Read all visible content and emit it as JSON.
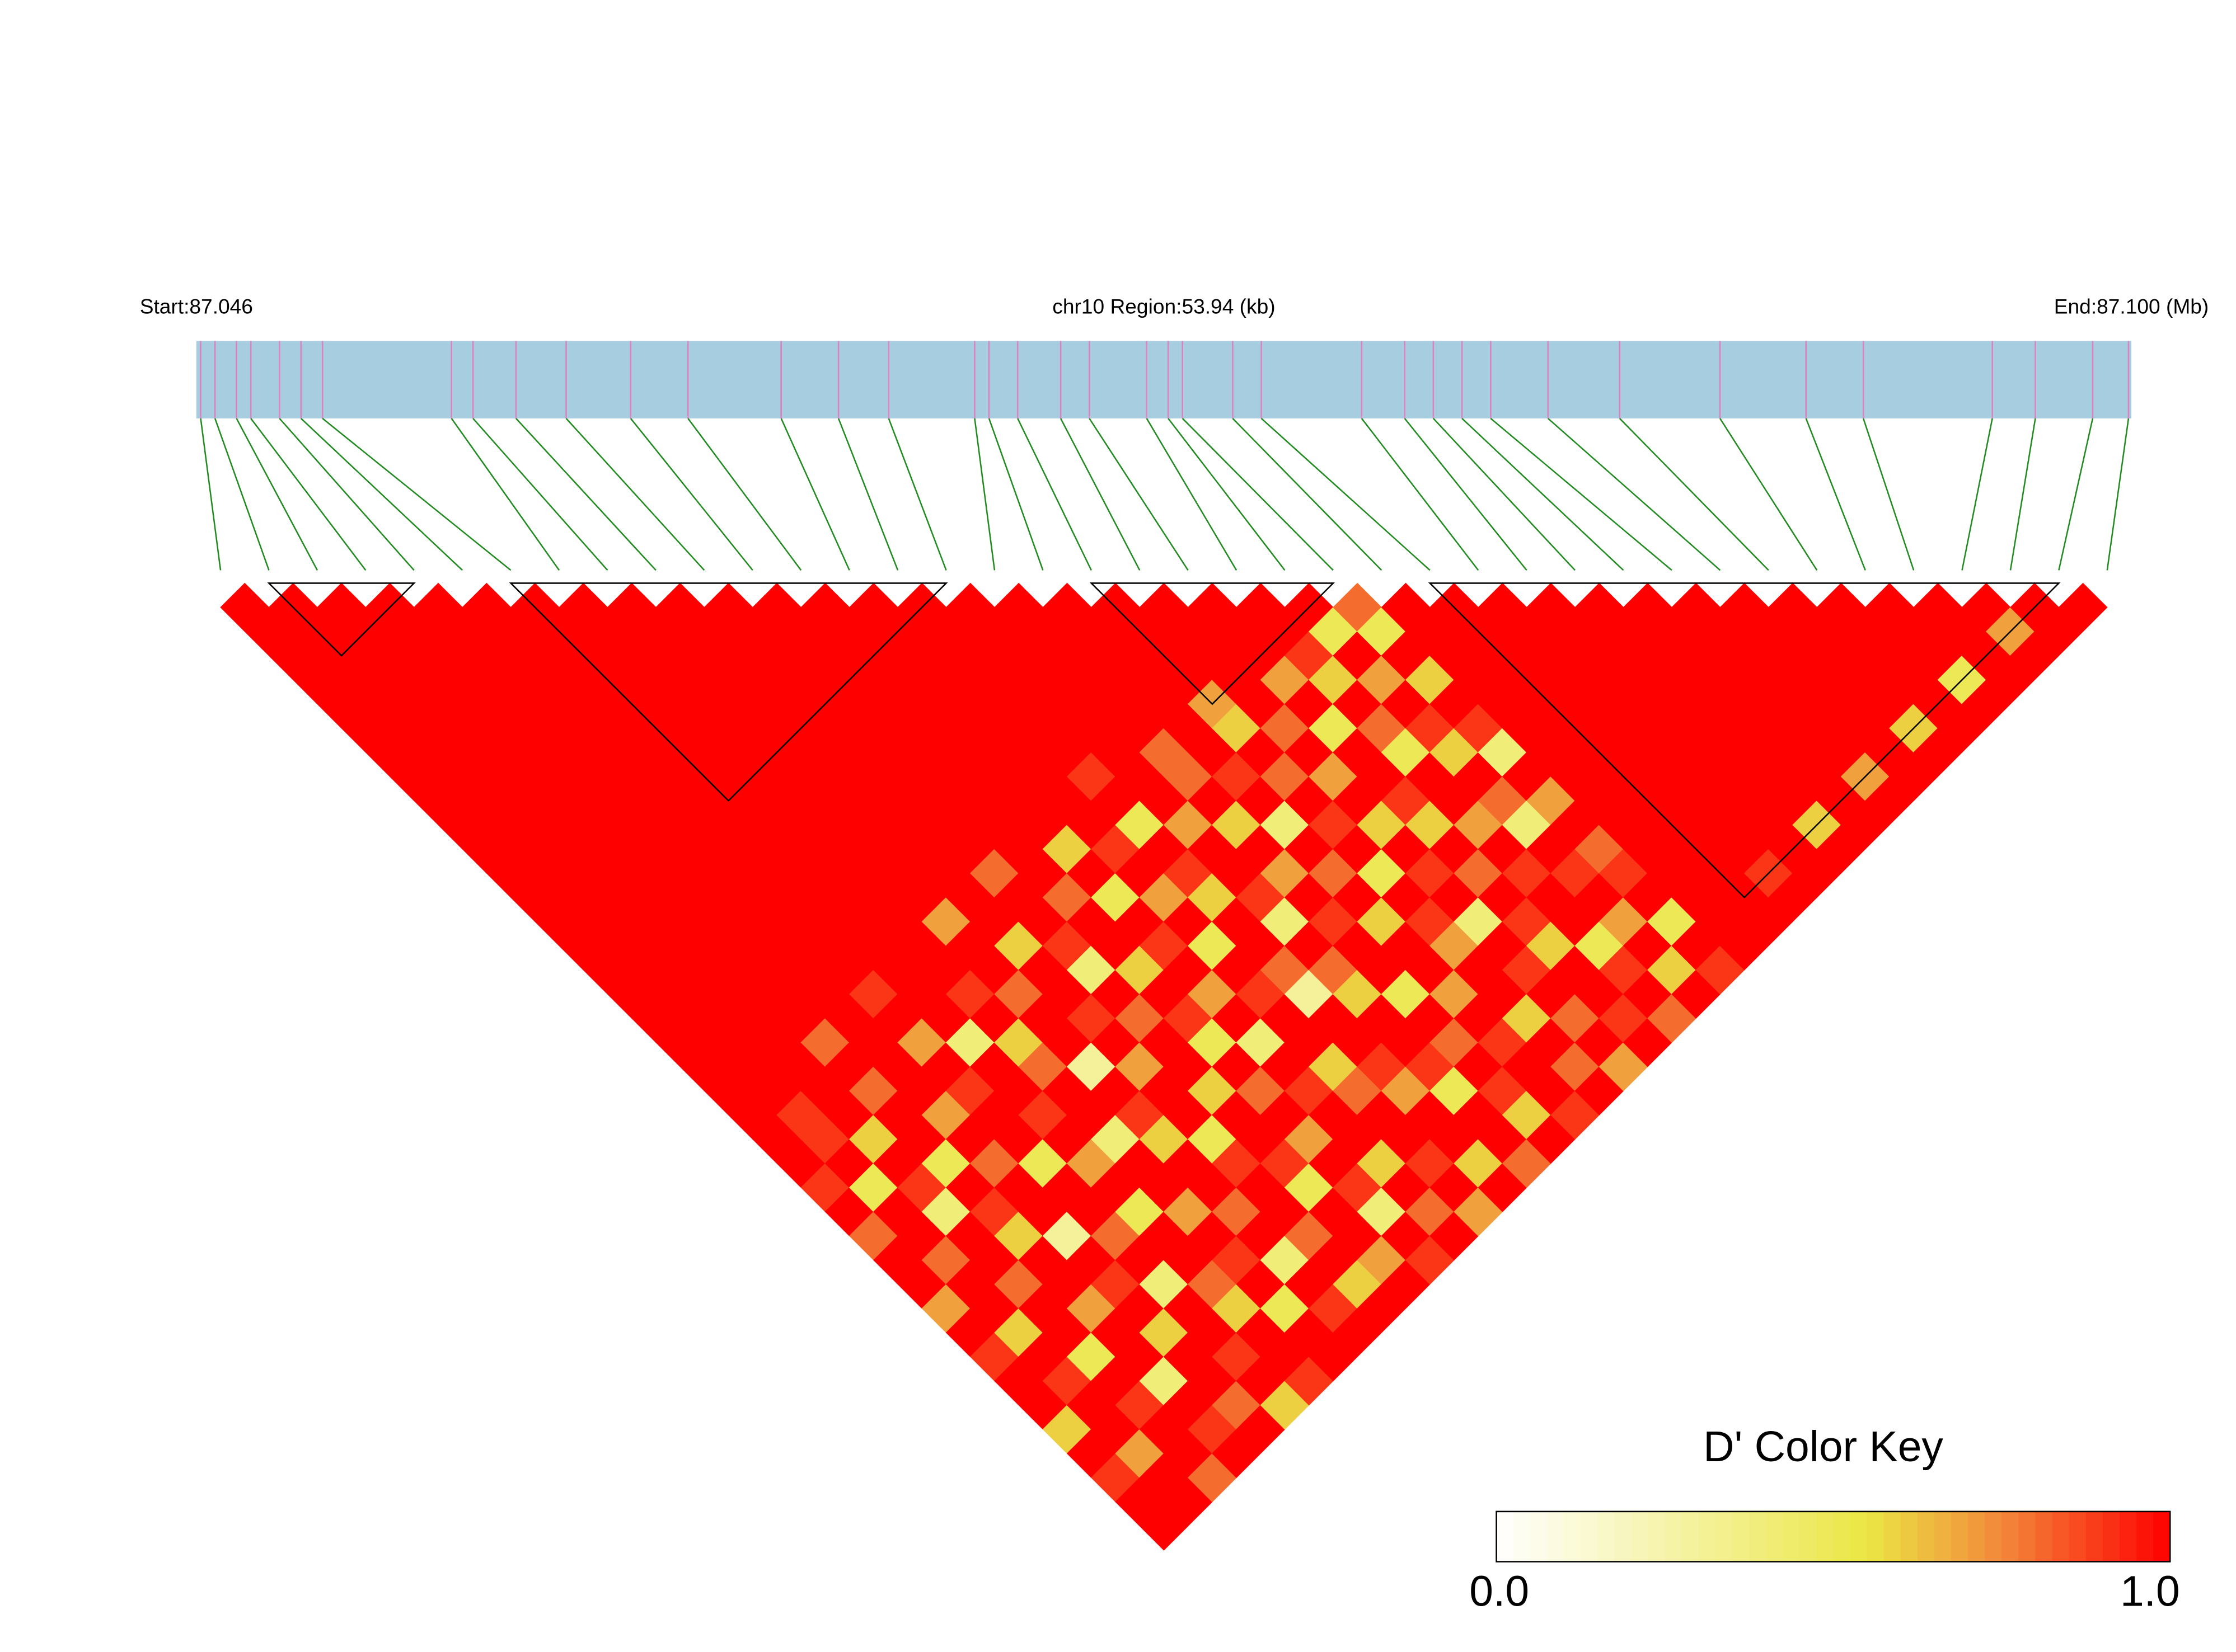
{
  "chart_data": {
    "type": "ld-heatmap",
    "title": "chr10 Region:53.94 (kb)",
    "xlim": [
      87.046,
      87.1
    ],
    "xticks": [
      {
        "value": 87.046,
        "label": "Start:87.046"
      },
      {
        "value": 87.1,
        "label": "End:87.100 (Mb)"
      }
    ],
    "positions": [
      87.04612,
      87.04652,
      87.04712,
      87.04752,
      87.04832,
      87.04892,
      87.04952,
      87.05312,
      87.05372,
      87.05492,
      87.05632,
      87.05812,
      87.05972,
      87.06232,
      87.06392,
      87.06532,
      87.06772,
      87.06812,
      87.06892,
      87.07012,
      87.07092,
      87.07252,
      87.07312,
      87.07352,
      87.07492,
      87.07572,
      87.07852,
      87.07972,
      87.08052,
      87.08132,
      87.08212,
      87.08372,
      87.08572,
      87.08852,
      87.09092,
      87.09252,
      87.09612,
      87.09732,
      87.09892,
      87.09992
    ],
    "ld": [
      [
        1,
        1,
        1,
        1,
        1,
        1,
        1,
        1,
        1,
        1,
        1,
        1,
        1,
        1,
        1,
        1,
        1,
        1,
        1,
        1,
        1,
        1,
        1,
        1,
        0.9,
        1,
        0.8,
        1,
        1,
        0.7,
        1,
        0.9,
        1,
        1,
        0.6,
        1,
        0.9,
        1,
        1
      ],
      [
        1,
        1,
        1,
        1,
        1,
        1,
        1,
        1,
        1,
        1,
        1,
        1,
        1,
        1,
        1,
        1,
        1,
        1,
        1,
        1,
        1,
        0.9,
        0.9,
        1,
        0.5,
        1,
        1,
        0.8,
        1,
        1,
        0.6,
        1,
        0.9,
        1,
        1,
        0.7,
        1,
        1
      ],
      [
        1,
        1,
        1,
        1,
        1,
        1,
        1,
        1,
        1,
        1,
        1,
        1,
        1,
        1,
        1,
        1,
        1,
        1,
        1,
        1,
        1,
        1,
        0.6,
        1,
        0.9,
        0.4,
        1,
        1,
        0.8,
        1,
        1,
        0.5,
        1,
        0.9,
        1,
        1,
        0.8
      ],
      [
        1,
        1,
        1,
        1,
        1,
        1,
        1,
        1,
        1,
        1,
        1,
        1,
        1,
        1,
        1,
        1,
        1,
        1,
        0.8,
        1,
        0.8,
        1,
        1,
        0.5,
        1,
        0.9,
        0.6,
        1,
        1,
        0.7,
        1,
        1,
        0.4,
        1,
        0.9,
        1
      ],
      [
        1,
        1,
        1,
        1,
        1,
        1,
        1,
        1,
        1,
        1,
        1,
        1,
        1,
        1,
        1,
        1,
        1,
        1,
        1,
        1,
        1,
        0.7,
        1,
        0.8,
        1,
        1,
        0.3,
        1,
        0.9,
        1,
        0.6,
        1,
        1,
        0.8,
        1
      ],
      [
        1,
        1,
        1,
        1,
        1,
        1,
        1,
        1,
        1,
        1,
        1,
        1,
        1,
        1,
        1,
        1,
        0.9,
        1,
        0.7,
        1,
        0.9,
        1,
        1,
        0.5,
        1,
        1,
        0.8,
        1,
        0.4,
        1,
        1,
        0.9,
        1,
        0.6
      ],
      [
        1,
        1,
        1,
        1,
        1,
        1,
        1,
        1,
        1,
        1,
        1,
        1,
        1,
        1,
        1,
        1,
        1,
        1,
        0.4,
        1,
        1,
        0.9,
        1,
        0.7,
        1,
        0.5,
        1,
        1,
        0.8,
        0.6,
        1,
        1,
        0.9
      ],
      [
        1,
        1,
        1,
        1,
        1,
        1,
        1,
        1,
        1,
        1,
        1,
        1,
        1,
        1,
        1,
        1,
        0.9,
        1,
        0.6,
        0.8,
        1,
        1,
        0.4,
        1,
        1,
        0.7,
        1,
        0.9,
        1,
        0.5,
        1,
        1
      ],
      [
        1,
        1,
        1,
        1,
        1,
        1,
        1,
        1,
        1,
        1,
        1,
        1,
        1,
        0.7,
        1,
        1,
        0.8,
        1,
        1,
        0.3,
        1,
        0.9,
        0.6,
        1,
        1,
        0.8,
        1,
        0.4,
        1,
        0.9,
        1
      ],
      [
        1,
        1,
        1,
        1,
        1,
        1,
        1,
        1,
        1,
        1,
        1,
        1,
        1,
        1,
        0.6,
        1,
        1,
        0.9,
        1,
        0.7,
        1,
        1,
        0.5,
        0.9,
        1,
        1,
        0.8,
        1,
        0.6,
        1
      ],
      [
        1,
        1,
        1,
        1,
        1,
        1,
        1,
        1,
        1,
        1,
        1,
        0.8,
        1,
        1,
        0.9,
        0.4,
        1,
        0.8,
        1,
        1,
        0.6,
        1,
        1,
        0.9,
        0.5,
        1,
        1,
        0.7,
        1
      ],
      [
        1,
        1,
        1,
        1,
        1,
        1,
        1,
        1,
        1,
        1,
        1,
        1,
        0.8,
        1,
        1,
        0.6,
        1,
        0.9,
        0.5,
        1,
        0.8,
        1,
        0.7,
        1,
        0.9,
        0.4,
        1,
        0.9
      ],
      [
        1,
        1,
        1,
        1,
        1,
        1,
        1,
        1,
        1,
        1,
        0.6,
        1,
        0.5,
        1,
        0.9,
        1,
        0.7,
        1,
        0.4,
        1,
        0.9,
        1,
        1,
        0.6,
        1,
        0.8,
        1
      ],
      [
        1,
        1,
        1,
        1,
        1,
        1,
        1,
        1,
        1,
        1,
        0.9,
        1,
        0.7,
        1,
        0.5,
        1,
        0.9,
        1,
        1,
        0.6,
        0.8,
        1,
        1,
        0.9,
        1,
        0.7
      ],
      [
        1,
        1,
        1,
        1,
        1,
        1,
        1,
        0.9,
        1,
        0.5,
        1,
        0.9,
        0.6,
        1,
        1,
        0.8,
        0.3,
        1,
        1,
        0.9,
        0.7,
        1,
        1,
        0.6,
        1
      ],
      [
        1,
        1,
        1,
        1,
        1,
        1,
        1,
        1,
        1,
        0.7,
        1,
        1,
        0.9,
        0.4,
        1,
        0.8,
        0.6,
        1,
        1,
        0.9,
        0.5,
        1,
        1,
        0.8
      ],
      [
        1,
        1,
        1,
        1,
        1,
        1,
        0.8,
        0.8,
        1,
        0.6,
        1,
        0.7,
        1,
        0.9,
        1,
        1,
        0.5,
        1,
        0.8,
        1,
        0.9,
        0.6,
        1
      ],
      [
        1,
        1,
        1,
        1,
        1,
        1,
        1,
        0.9,
        1,
        0.4,
        1,
        0.8,
        1,
        0.6,
        1,
        1,
        0.7,
        1,
        0.9,
        1,
        1,
        0.9
      ],
      [
        1,
        1,
        1,
        1,
        0.7,
        0.6,
        1,
        0.8,
        1,
        0.9,
        1,
        0.5,
        1,
        0.9,
        0.7,
        1,
        1,
        0.6,
        1,
        0.8,
        1
      ],
      [
        1,
        1,
        1,
        1,
        1,
        0.8,
        1,
        0.7,
        1,
        0.6,
        1,
        0.9,
        1,
        0.4,
        1,
        0.9,
        1,
        0.8,
        1,
        0.7
      ],
      [
        1,
        1,
        1,
        0.7,
        1,
        0.5,
        1,
        1,
        0.9,
        0.6,
        1,
        0.8,
        1,
        0.9,
        0.6,
        1,
        1,
        0.9,
        1
      ],
      [
        1,
        1,
        0.9,
        0.6,
        1,
        0.8,
        0.5,
        1,
        1,
        0.7,
        1,
        0.9,
        1,
        1,
        0.5,
        0.9,
        1,
        0.8
      ],
      [
        1,
        0.5,
        1,
        0.7,
        1,
        0.9,
        0.6,
        1,
        0.8,
        0.4,
        1,
        0.9,
        1,
        0.7,
        1,
        0.6,
        1
      ],
      [
        0.8,
        0.5,
        1,
        0.6,
        1,
        0.9,
        0.4,
        1,
        0.7,
        1,
        0.8,
        0.9,
        1,
        0.5,
        1,
        0.9
      ],
      [
        1,
        1,
        1,
        1,
        1,
        1,
        1,
        1,
        1,
        1,
        1,
        1,
        1,
        1,
        1
      ],
      [
        1,
        1,
        1,
        1,
        1,
        1,
        1,
        1,
        1,
        1,
        1,
        1,
        1,
        1
      ],
      [
        1,
        1,
        1,
        1,
        1,
        1,
        1,
        1,
        1,
        1,
        1,
        0.9,
        1
      ],
      [
        1,
        1,
        1,
        1,
        1,
        1,
        1,
        1,
        1,
        1,
        1,
        1
      ],
      [
        1,
        1,
        1,
        1,
        1,
        1,
        1,
        1,
        1,
        0.6,
        1
      ],
      [
        1,
        1,
        1,
        1,
        1,
        1,
        1,
        1,
        1,
        1
      ],
      [
        1,
        1,
        1,
        1,
        1,
        1,
        1,
        0.7,
        1
      ],
      [
        1,
        1,
        1,
        1,
        1,
        1,
        1,
        1
      ],
      [
        1,
        1,
        1,
        1,
        1,
        0.6,
        1
      ],
      [
        1,
        1,
        1,
        1,
        1,
        1
      ],
      [
        1,
        1,
        1,
        0.5,
        1
      ],
      [
        1,
        1,
        1,
        1
      ],
      [
        1,
        0.7,
        1
      ],
      [
        1,
        1
      ],
      [
        1
      ]
    ],
    "blocks": [
      [
        1,
        4
      ],
      [
        6,
        15
      ],
      [
        18,
        23
      ],
      [
        25,
        38
      ]
    ],
    "colorscale": [
      [
        0,
        "#ffffff"
      ],
      [
        0.55,
        "#ebe645"
      ],
      [
        0.75,
        "#f2883a"
      ],
      [
        1,
        "#ff0000"
      ]
    ],
    "legend_title": "D' Color Key",
    "legend_ticks": [
      {
        "value": 0,
        "label": "0.0"
      },
      {
        "value": 1,
        "label": "1.0"
      }
    ],
    "track_color": "#a6cde0",
    "snp_color": "#e080c0",
    "connector_color": "#228b22",
    "block_color": "#000000"
  }
}
